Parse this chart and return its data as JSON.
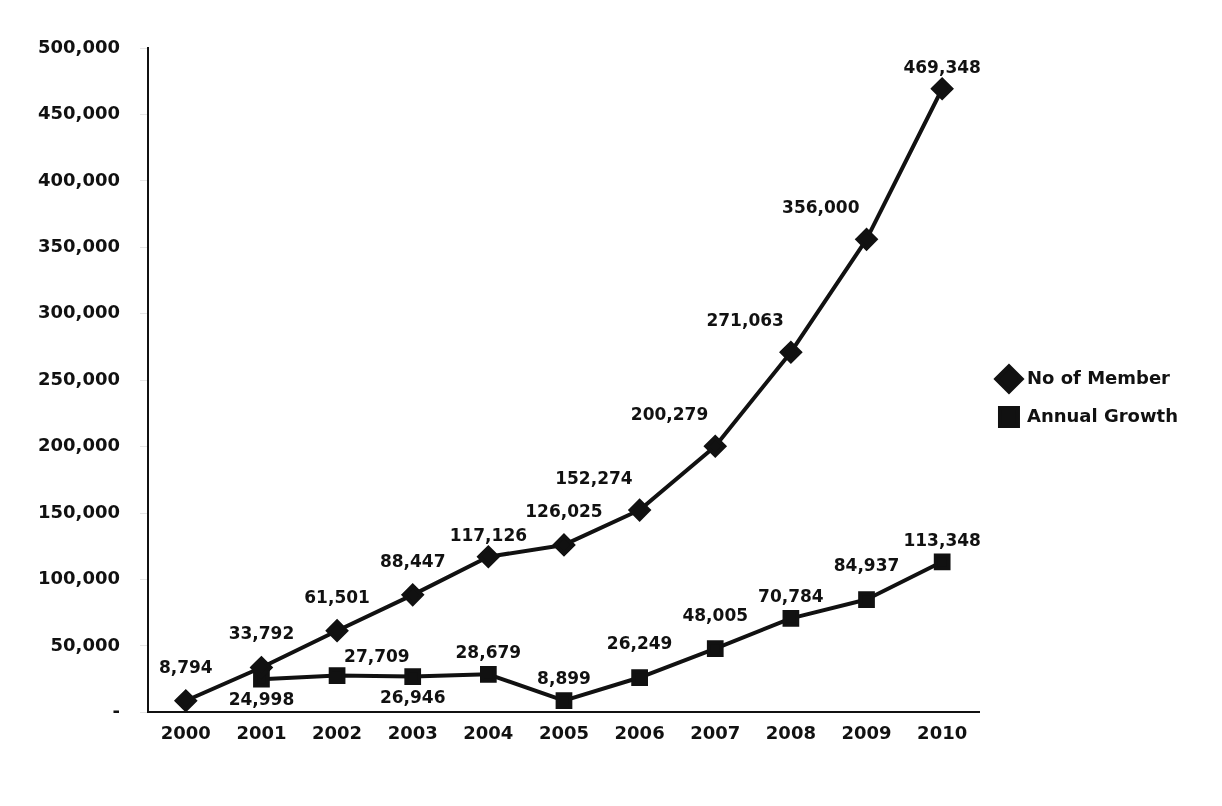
{
  "chart_data": {
    "type": "line",
    "categories": [
      "2000",
      "2001",
      "2002",
      "2003",
      "2004",
      "2005",
      "2006",
      "2007",
      "2008",
      "2009",
      "2010"
    ],
    "series": [
      {
        "name": "No of Member",
        "color": "#111111",
        "marker": "diamond",
        "values": [
          8794,
          33792,
          61501,
          88447,
          117126,
          126025,
          152274,
          200279,
          271063,
          356000,
          469348
        ],
        "value_labels": [
          "8,794",
          "33,792",
          "61,501",
          "88,447",
          "117,126",
          "126,025",
          "152,274",
          "200,279",
          "271,063",
          "356,000",
          "469,348"
        ]
      },
      {
        "name": "Annual Growth",
        "color": "#111111",
        "marker": "square",
        "values": [
          null,
          24998,
          27709,
          26946,
          28679,
          8899,
          26249,
          48005,
          70784,
          84937,
          113348
        ],
        "value_labels": [
          null,
          "24,998",
          "27,709",
          "26,946",
          "28,679",
          "8,899",
          "26,249",
          "48,005",
          "70,784",
          "84,937",
          "113,348"
        ]
      }
    ],
    "ylim": [
      0,
      500000
    ],
    "yticks": [
      {
        "value": 0,
        "label": "-"
      },
      {
        "value": 50000,
        "label": "50,000"
      },
      {
        "value": 100000,
        "label": "100,000"
      },
      {
        "value": 150000,
        "label": "150,000"
      },
      {
        "value": 200000,
        "label": "200,000"
      },
      {
        "value": 250000,
        "label": "250,000"
      },
      {
        "value": 300000,
        "label": "300,000"
      },
      {
        "value": 350000,
        "label": "350,000"
      },
      {
        "value": 400000,
        "label": "400,000"
      },
      {
        "value": 450000,
        "label": "450,000"
      },
      {
        "value": 500000,
        "label": "500,000"
      }
    ],
    "grid": false,
    "legend": "right",
    "line_style": "solid"
  }
}
